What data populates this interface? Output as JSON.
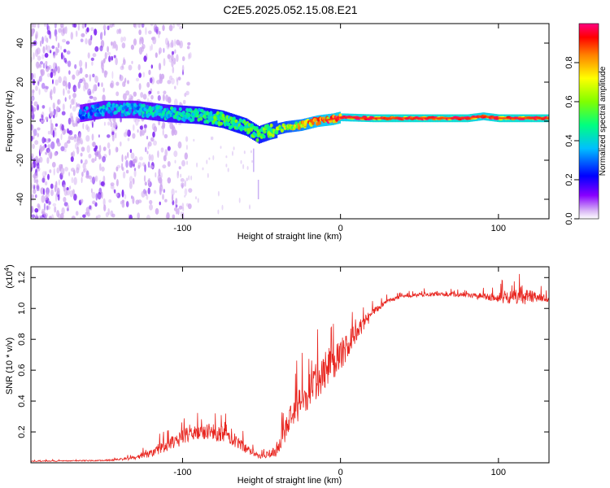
{
  "figure": {
    "title": "C2E5.2025.052.15.08.E21"
  },
  "chart_data": [
    {
      "type": "heatmap",
      "xlabel": "Height of straight line (km)",
      "ylabel": "Frequency (Hz)",
      "xlim": [
        -196,
        132
      ],
      "ylim": [
        -50,
        50
      ],
      "xticks": [
        -100,
        0,
        100
      ],
      "yticks": [
        -40,
        -20,
        0,
        20,
        40
      ],
      "grid": false,
      "colormap": [
        "#cfa8f0",
        "#7a00f0",
        "#0000ff",
        "#00e5ff",
        "#00ff40",
        "#ffff00",
        "#ff7f00",
        "#ff0000",
        "#ff00a0"
      ],
      "ridge": {
        "x": [
          -165,
          -150,
          -130,
          -110,
          -90,
          -75,
          -60,
          -52,
          -45,
          -35,
          -25,
          -15,
          -5,
          0,
          20,
          50,
          80,
          90,
          100,
          110,
          132
        ],
        "freq": [
          4,
          6,
          6,
          4,
          3,
          1,
          -3,
          -7,
          -5,
          -3,
          -2,
          0,
          1,
          2,
          1.5,
          1.5,
          1.5,
          2.5,
          1.5,
          1.5,
          1.5
        ],
        "amplitude": [
          0.3,
          0.35,
          0.35,
          0.4,
          0.45,
          0.5,
          0.5,
          0.5,
          0.55,
          0.6,
          0.7,
          0.8,
          0.85,
          0.85,
          0.9,
          0.9,
          0.9,
          0.85,
          0.9,
          0.9,
          0.9
        ]
      },
      "scatter_extent": [
        -196,
        -105
      ]
    },
    {
      "type": "colorbar",
      "label": "Normalized spectral amplitude",
      "range": [
        0.0,
        1.0
      ],
      "ticks": [
        "0.0",
        "0.2",
        "0.4",
        "0.6",
        "0.8"
      ],
      "tick_values": [
        0.0,
        0.2,
        0.4,
        0.6,
        0.8
      ]
    },
    {
      "type": "line",
      "xlabel": "Height of straight line (km)",
      "ylabel": "SNR (10 * v/v)",
      "y_multiplier": "(x10",
      "y_multiplier_exp": "4",
      "y_multiplier_close": ")",
      "xlim": [
        -196,
        132
      ],
      "ylim": [
        0,
        1.27
      ],
      "xticks": [
        -100,
        0,
        100
      ],
      "yticks": [
        "0.2",
        "0.4",
        "0.6",
        "0.8",
        "1.0",
        "1.2"
      ],
      "ytick_values": [
        0.2,
        0.4,
        0.6,
        0.8,
        1.0,
        1.2
      ],
      "color": "#e8251f",
      "series": [
        {
          "x": [
            -196,
            -150,
            -130,
            -120,
            -110,
            -100,
            -90,
            -80,
            -70,
            -60,
            -50,
            -40,
            -35,
            -30,
            -20,
            -10,
            0,
            10,
            20,
            30,
            40,
            50,
            60,
            70,
            80,
            90,
            100,
            110,
            120,
            132
          ],
          "base": [
            0.01,
            0.015,
            0.03,
            0.06,
            0.11,
            0.17,
            0.2,
            0.2,
            0.17,
            0.09,
            0.04,
            0.08,
            0.2,
            0.32,
            0.46,
            0.6,
            0.7,
            0.85,
            0.97,
            1.05,
            1.08,
            1.09,
            1.09,
            1.09,
            1.085,
            1.08,
            1.07,
            1.08,
            1.08,
            1.06
          ],
          "amp": [
            0.005,
            0.008,
            0.02,
            0.05,
            0.08,
            0.1,
            0.1,
            0.12,
            0.1,
            0.06,
            0.03,
            0.08,
            0.15,
            0.2,
            0.22,
            0.25,
            0.22,
            0.12,
            0.05,
            0.03,
            0.02,
            0.03,
            0.025,
            0.025,
            0.025,
            0.04,
            0.06,
            0.12,
            0.08,
            0.03
          ]
        }
      ]
    }
  ]
}
